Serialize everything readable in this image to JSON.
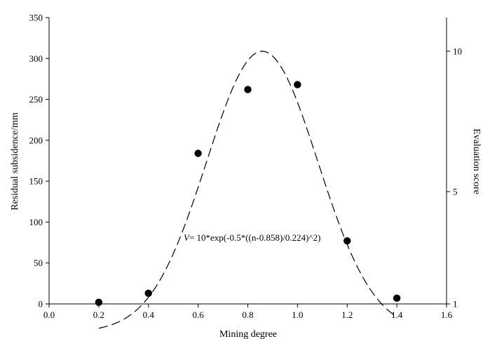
{
  "chart_data": {
    "type": "scatter",
    "xlabel": "Mining degree",
    "ylabel_left": "Residual subsidence/mm",
    "ylabel_right": "Evaluation score",
    "xlim": [
      0.0,
      1.6
    ],
    "ylim_left": [
      0,
      350
    ],
    "ylim_right": [
      1,
      11.2
    ],
    "x_ticks": [
      "0.0",
      "0.2",
      "0.4",
      "0.6",
      "0.8",
      "1.0",
      "1.2",
      "1.4",
      "1.6"
    ],
    "y_ticks_left": [
      "0",
      "50",
      "100",
      "150",
      "200",
      "250",
      "300",
      "350"
    ],
    "y_ticks_right": [
      "1",
      "5",
      "10"
    ],
    "grid": false,
    "points": {
      "x": [
        0.2,
        0.4,
        0.6,
        0.8,
        1.0,
        1.2,
        1.4
      ],
      "y": [
        2,
        13,
        184,
        262,
        268,
        77,
        7
      ]
    },
    "fit_curve": {
      "style": "dashed",
      "axis": "right",
      "amplitude": 10,
      "center": 0.858,
      "width": 0.224,
      "x_range": [
        0.2,
        1.4
      ]
    },
    "annotation": {
      "var": "V",
      "expr": "= 10*exp(-0.5*((n-0.858)/0.224)^2)"
    }
  }
}
